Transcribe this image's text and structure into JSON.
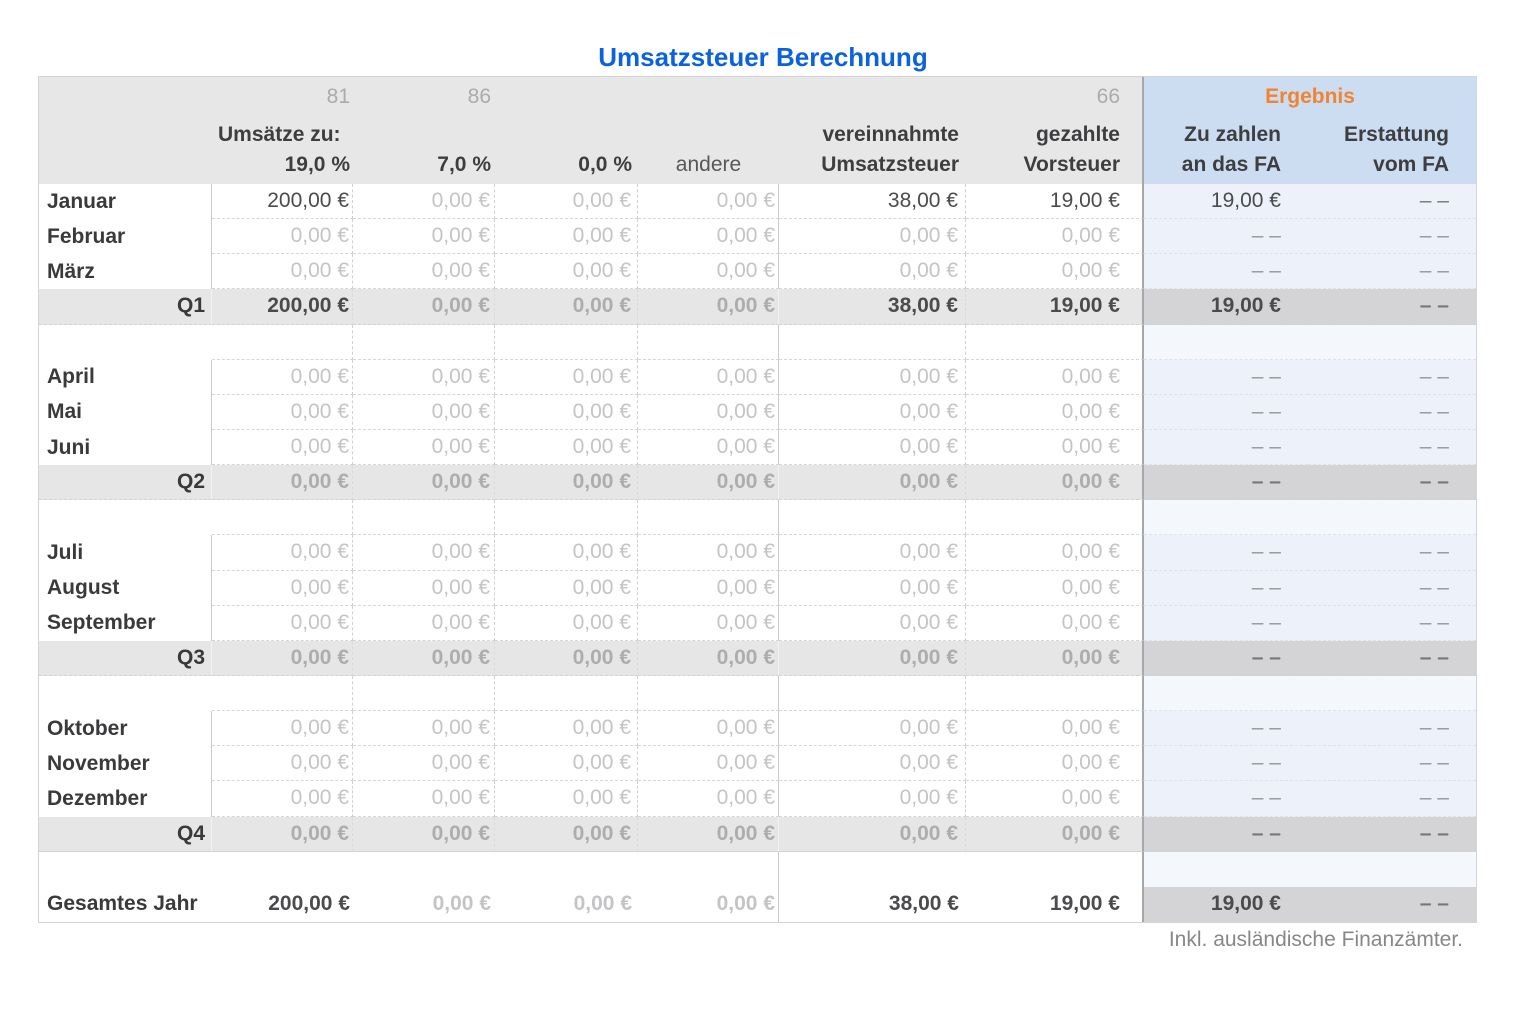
{
  "title": "Umsatzsteuer Berechnung",
  "footer": "Inkl. ausländische Finanzämter.",
  "colors": {
    "title_blue": "#0c62dd",
    "ergebnis_orange": "#ef8432",
    "ergebnis_header_blue": "#cdddf1",
    "ergebnis_row_blue": "#edf2fa",
    "ergebnis_spacer_blue": "#f4f7fc",
    "ergebnis_quarter_gray": "#d4d4d6",
    "header_gray": "#e7e7e7",
    "quarter_gray": "#e6e6e7"
  },
  "header": {
    "codes": {
      "c19": "81",
      "c7": "86",
      "gezahlt": "66"
    },
    "umsaetze_label": "Umsätze zu:",
    "rates": {
      "c19": "19,0 %",
      "c7": "7,0 %",
      "c0": "0,0 %",
      "andere": "andere"
    },
    "verein1": "vereinnahmte",
    "verein2": "Umsatzsteuer",
    "gezahlt1": "gezahlte",
    "gezahlt2": "Vorsteuer",
    "ergebnis_label": "Ergebnis",
    "zu1": "Zu zahlen",
    "zu2": "an das FA",
    "er1": "Erstattung",
    "er2": "vom FA"
  },
  "rows": [
    {
      "type": "month",
      "label": "Januar",
      "values": [
        "200,00 €",
        "0,00 €",
        "0,00 €",
        "0,00 €",
        "38,00 €",
        "19,00 €"
      ],
      "vs": [
        "dark",
        "light",
        "light",
        "light",
        "dark",
        "dark"
      ],
      "result": [
        "19,00 €",
        "– –"
      ],
      "rs": [
        "dark",
        "dashdark"
      ]
    },
    {
      "type": "month",
      "label": "Februar",
      "values": [
        "0,00 €",
        "0,00 €",
        "0,00 €",
        "0,00 €",
        "0,00 €",
        "0,00 €"
      ],
      "vs": [
        "light",
        "light",
        "light",
        "light",
        "light",
        "light"
      ],
      "result": [
        "– –",
        "– –"
      ],
      "rs": [
        "dash",
        "dash"
      ]
    },
    {
      "type": "month",
      "label": "März",
      "values": [
        "0,00 €",
        "0,00 €",
        "0,00 €",
        "0,00 €",
        "0,00 €",
        "0,00 €"
      ],
      "vs": [
        "light",
        "light",
        "light",
        "light",
        "light",
        "light"
      ],
      "result": [
        "– –",
        "– –"
      ],
      "rs": [
        "dash",
        "dash"
      ]
    },
    {
      "type": "quarter",
      "label": "Q1",
      "values": [
        "200,00 €",
        "0,00 €",
        "0,00 €",
        "0,00 €",
        "38,00 €",
        "19,00 €"
      ],
      "vs": [
        "dark",
        "qlight",
        "qlight",
        "qlight",
        "dark",
        "dark"
      ],
      "result": [
        "19,00 €",
        "– –"
      ],
      "rs": [
        "dark",
        "dashdark"
      ]
    },
    {
      "type": "spacer"
    },
    {
      "type": "month",
      "label": "April",
      "values": [
        "0,00 €",
        "0,00 €",
        "0,00 €",
        "0,00 €",
        "0,00 €",
        "0,00 €"
      ],
      "vs": [
        "light",
        "light",
        "light",
        "light",
        "light",
        "light"
      ],
      "result": [
        "– –",
        "– –"
      ],
      "rs": [
        "dash",
        "dash"
      ]
    },
    {
      "type": "month",
      "label": "Mai",
      "values": [
        "0,00 €",
        "0,00 €",
        "0,00 €",
        "0,00 €",
        "0,00 €",
        "0,00 €"
      ],
      "vs": [
        "light",
        "light",
        "light",
        "light",
        "light",
        "light"
      ],
      "result": [
        "– –",
        "– –"
      ],
      "rs": [
        "dash",
        "dash"
      ]
    },
    {
      "type": "month",
      "label": "Juni",
      "values": [
        "0,00 €",
        "0,00 €",
        "0,00 €",
        "0,00 €",
        "0,00 €",
        "0,00 €"
      ],
      "vs": [
        "light",
        "light",
        "light",
        "light",
        "light",
        "light"
      ],
      "result": [
        "– –",
        "– –"
      ],
      "rs": [
        "dash",
        "dash"
      ]
    },
    {
      "type": "quarter",
      "label": "Q2",
      "values": [
        "0,00 €",
        "0,00 €",
        "0,00 €",
        "0,00 €",
        "0,00 €",
        "0,00 €"
      ],
      "vs": [
        "qlight",
        "qlight",
        "qlight",
        "qlight",
        "qlight",
        "qlight"
      ],
      "result": [
        "– –",
        "– –"
      ],
      "rs": [
        "dashdark",
        "dashdark"
      ]
    },
    {
      "type": "spacer"
    },
    {
      "type": "month",
      "label": "Juli",
      "values": [
        "0,00 €",
        "0,00 €",
        "0,00 €",
        "0,00 €",
        "0,00 €",
        "0,00 €"
      ],
      "vs": [
        "light",
        "light",
        "light",
        "light",
        "light",
        "light"
      ],
      "result": [
        "– –",
        "– –"
      ],
      "rs": [
        "dash",
        "dash"
      ]
    },
    {
      "type": "month",
      "label": "August",
      "values": [
        "0,00 €",
        "0,00 €",
        "0,00 €",
        "0,00 €",
        "0,00 €",
        "0,00 €"
      ],
      "vs": [
        "light",
        "light",
        "light",
        "light",
        "light",
        "light"
      ],
      "result": [
        "– –",
        "– –"
      ],
      "rs": [
        "dash",
        "dash"
      ]
    },
    {
      "type": "month",
      "label": "September",
      "values": [
        "0,00 €",
        "0,00 €",
        "0,00 €",
        "0,00 €",
        "0,00 €",
        "0,00 €"
      ],
      "vs": [
        "light",
        "light",
        "light",
        "light",
        "light",
        "light"
      ],
      "result": [
        "– –",
        "– –"
      ],
      "rs": [
        "dash",
        "dash"
      ]
    },
    {
      "type": "quarter",
      "label": "Q3",
      "values": [
        "0,00 €",
        "0,00 €",
        "0,00 €",
        "0,00 €",
        "0,00 €",
        "0,00 €"
      ],
      "vs": [
        "qlight",
        "qlight",
        "qlight",
        "qlight",
        "qlight",
        "qlight"
      ],
      "result": [
        "– –",
        "– –"
      ],
      "rs": [
        "dashdark",
        "dashdark"
      ]
    },
    {
      "type": "spacer"
    },
    {
      "type": "month",
      "label": "Oktober",
      "values": [
        "0,00 €",
        "0,00 €",
        "0,00 €",
        "0,00 €",
        "0,00 €",
        "0,00 €"
      ],
      "vs": [
        "light",
        "light",
        "light",
        "light",
        "light",
        "light"
      ],
      "result": [
        "– –",
        "– –"
      ],
      "rs": [
        "dash",
        "dash"
      ]
    },
    {
      "type": "month",
      "label": "November",
      "values": [
        "0,00 €",
        "0,00 €",
        "0,00 €",
        "0,00 €",
        "0,00 €",
        "0,00 €"
      ],
      "vs": [
        "light",
        "light",
        "light",
        "light",
        "light",
        "light"
      ],
      "result": [
        "– –",
        "– –"
      ],
      "rs": [
        "dash",
        "dash"
      ]
    },
    {
      "type": "month",
      "label": "Dezember",
      "values": [
        "0,00 €",
        "0,00 €",
        "0,00 €",
        "0,00 €",
        "0,00 €",
        "0,00 €"
      ],
      "vs": [
        "light",
        "light",
        "light",
        "light",
        "light",
        "light"
      ],
      "result": [
        "– –",
        "– –"
      ],
      "rs": [
        "dash",
        "dash"
      ]
    },
    {
      "type": "quarter",
      "label": "Q4",
      "last": true,
      "values": [
        "0,00 €",
        "0,00 €",
        "0,00 €",
        "0,00 €",
        "0,00 €",
        "0,00 €"
      ],
      "vs": [
        "qlight",
        "qlight",
        "qlight",
        "qlight",
        "qlight",
        "qlight"
      ],
      "result": [
        "– –",
        "– –"
      ],
      "rs": [
        "dashdark",
        "dashdark"
      ]
    },
    {
      "type": "spacer_final"
    },
    {
      "type": "year",
      "label": "Gesamtes Jahr",
      "values": [
        "200,00 €",
        "0,00 €",
        "0,00 €",
        "0,00 €",
        "38,00 €",
        "19,00 €"
      ],
      "vs": [
        "dark",
        "light",
        "light",
        "light",
        "dark",
        "dark"
      ],
      "result": [
        "19,00 €",
        "– –"
      ],
      "rs": [
        "dark",
        "dashdark"
      ]
    }
  ]
}
